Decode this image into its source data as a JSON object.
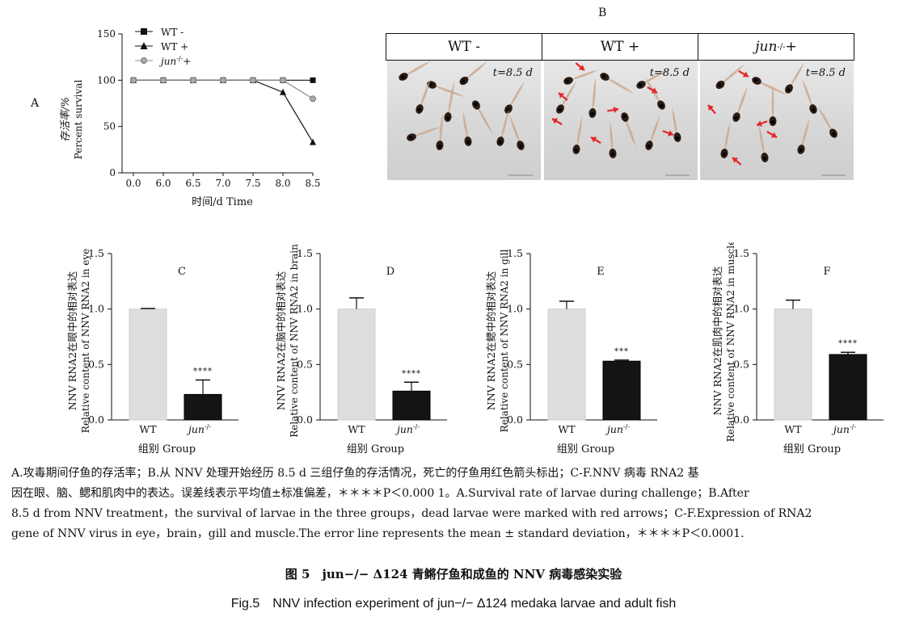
{
  "panel_a": {
    "label": "A",
    "legend": [
      "WT -",
      "WT +",
      "jun",
      "-/-",
      "+"
    ],
    "ylabel_cn": "存活率/%",
    "ylabel_en": "Percent survival",
    "xlabel": "时间/d Time"
  },
  "panel_b": {
    "label": "B",
    "groups": [
      "WT -",
      "WT +",
      "jun"
    ],
    "group3_sup": "-/-",
    "group3_suffix": "+",
    "time_label": "t=8.5 d"
  },
  "bar_panels": [
    {
      "label": "C",
      "ylabel_cn": "NNV RNA2在眼中的相对表达",
      "ylabel_en": "Relative content of NNV RNA2 in eye",
      "sig": "****"
    },
    {
      "label": "D",
      "ylabel_cn": "NNV RNA2在脑中的相对表达",
      "ylabel_en": "Relative content of NNV RNA2 in brain",
      "sig": "****"
    },
    {
      "label": "E",
      "ylabel_cn": "NNV RNA2在鳃中的相对表达",
      "ylabel_en": "Relative content of NNV RNA2 in gill",
      "sig": "***"
    },
    {
      "label": "F",
      "ylabel_cn": "NNV RNA2在肌肉中的相对表达",
      "ylabel_en": "Relative content of NNV RNA2 in muscle",
      "sig": "****"
    }
  ],
  "bar_common": {
    "xlabel": "组别 Group",
    "cat_wt": "WT",
    "cat_jun": "jun",
    "cat_jun_sup": "-/-"
  },
  "chart_data": [
    {
      "type": "line",
      "title": "",
      "xlabel": "时间/d Time",
      "ylabel": "存活率/% Percent survival",
      "x": [
        0.0,
        6.0,
        6.5,
        7.0,
        7.5,
        8.0,
        8.5
      ],
      "xticks": [
        "0.0",
        "6.0",
        "6.5",
        "7.0",
        "7.5",
        "8.0",
        "8.5"
      ],
      "ylim": [
        0,
        150
      ],
      "yticks": [
        "0",
        "50",
        "100",
        "150"
      ],
      "series": [
        {
          "name": "WT -",
          "values": [
            100,
            100,
            100,
            100,
            100,
            100,
            100
          ]
        },
        {
          "name": "WT +",
          "values": [
            100,
            100,
            100,
            100,
            100,
            87,
            33
          ]
        },
        {
          "name": "jun-/- +",
          "values": [
            100,
            100,
            100,
            100,
            100,
            100,
            80
          ]
        }
      ]
    },
    {
      "type": "bar",
      "title": "C",
      "ylabel": "Relative content of NNV RNA2 in eye",
      "categories": [
        "WT",
        "jun-/-"
      ],
      "values": [
        1.0,
        0.23
      ],
      "errors": [
        0.005,
        0.13
      ],
      "ylim": [
        0,
        1.5
      ],
      "yticks": [
        "0.0",
        "0.5",
        "1.0",
        "1.5"
      ]
    },
    {
      "type": "bar",
      "title": "D",
      "ylabel": "Relative content of NNV RNA2 in brain",
      "categories": [
        "WT",
        "jun-/-"
      ],
      "values": [
        1.0,
        0.26
      ],
      "errors": [
        0.1,
        0.08
      ],
      "ylim": [
        0,
        1.5
      ],
      "yticks": [
        "0.0",
        "0.5",
        "1.0",
        "1.5"
      ]
    },
    {
      "type": "bar",
      "title": "E",
      "ylabel": "Relative content of NNV RNA2 in gill",
      "categories": [
        "WT",
        "jun-/-"
      ],
      "values": [
        1.0,
        0.53
      ],
      "errors": [
        0.07,
        0.01
      ],
      "ylim": [
        0,
        1.5
      ],
      "yticks": [
        "0.0",
        "0.5",
        "1.0",
        "1.5"
      ]
    },
    {
      "type": "bar",
      "title": "F",
      "ylabel": "Relative content of NNV RNA2 in muscle",
      "categories": [
        "WT",
        "jun-/-"
      ],
      "values": [
        1.0,
        0.59
      ],
      "errors": [
        0.08,
        0.02
      ],
      "ylim": [
        0,
        1.5
      ],
      "yticks": [
        "0.0",
        "0.5",
        "1.0",
        "1.5"
      ]
    }
  ],
  "caption": {
    "line1": "A.攻毒期间仔鱼的存活率；B.从 NNV 处理开始经历 8.5 d 三组仔鱼的存活情况，死亡的仔鱼用红色箭头标出；C-F.NNV 病毒 RNA2 基",
    "line2": "因在眼、脑、鳃和肌肉中的表达。误差线表示平均值±标准偏差，＊＊＊＊P＜0.000 1。A.Survival rate of larvae during challenge；B.After",
    "line3": "8.5 d from NNV treatment，the survival of larvae in the three groups，dead larvae were marked with red arrows；C-F.Expression of RNA2",
    "line4": "gene of NNV virus in eye，brain，gill and muscle.The error line represents the mean ± standard deviation，＊＊＊＊P＜0.0001."
  },
  "fig_title_cn": "图 5　jun−/− Δ124 青鳉仔鱼和成鱼的 NNV 病毒感染实验",
  "fig_title_en": "Fig.5　NNV infection experiment of jun−/− Δ124 medaka larvae and adult fish",
  "colors": {
    "wt_bar": "#dedede",
    "jun_bar": "#141414",
    "arrow": "#e5262a",
    "axis": "#111111"
  }
}
